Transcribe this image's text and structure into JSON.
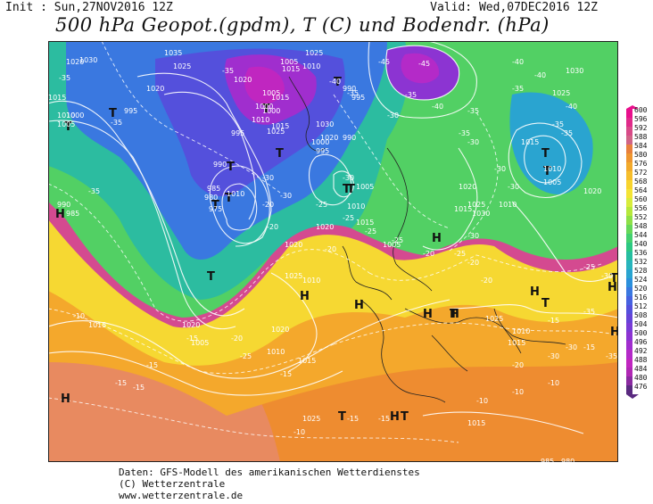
{
  "header": {
    "init": "Init : Sun,27NOV2016 12Z",
    "valid": "Valid: Wed,07DEC2016 12Z",
    "title": "500 hPa Geopot.(gpdm), T (C) und Bodendr. (hPa)"
  },
  "footer": {
    "line1": "Daten: GFS-Modell des amerikanischen Wetterdienstes",
    "line2": "(C) Wetterzentrale",
    "line3": "www.wetterzentrale.de"
  },
  "legend": {
    "levels": [
      "600",
      "596",
      "592",
      "588",
      "584",
      "580",
      "576",
      "572",
      "568",
      "564",
      "560",
      "556",
      "552",
      "548",
      "544",
      "540",
      "536",
      "532",
      "528",
      "524",
      "520",
      "516",
      "512",
      "508",
      "504",
      "500",
      "496",
      "492",
      "488",
      "484",
      "480",
      "476"
    ],
    "colors": [
      "#e8108c",
      "#e02a8a",
      "#d84a88",
      "#d06486",
      "#e8803c",
      "#ee9630",
      "#f2aa2c",
      "#f6be2c",
      "#f8d42e",
      "#f4e436",
      "#d8ec3c",
      "#b6e83c",
      "#8ee048",
      "#66d85a",
      "#44d070",
      "#2cc882",
      "#26bea0",
      "#28b4bc",
      "#2aa4d0",
      "#2c90dc",
      "#3a78e0",
      "#4662e0",
      "#5450dc",
      "#6644d8",
      "#7a3cd6",
      "#8c34d2",
      "#a02ece",
      "#b42ac8",
      "#c026c0",
      "#b028b4",
      "#8a2aa0",
      "#5a2a80"
    ]
  },
  "map": {
    "highs": [
      "H",
      "H",
      "H",
      "H",
      "H",
      "H",
      "H",
      "H",
      "H",
      "H",
      "H"
    ],
    "lows": [
      "T",
      "T",
      "T",
      "T",
      "T",
      "T",
      "T",
      "T",
      "T",
      "T",
      "T",
      "T",
      "T",
      "T",
      "T",
      "T",
      "T",
      "T"
    ],
    "pressure_labels": [
      "1035",
      "1030",
      "1025",
      "1020",
      "1015",
      "1010",
      "1005",
      "1000",
      "995",
      "990",
      "985",
      "980",
      "975",
      "1020",
      "1010",
      "1015",
      "1005",
      "1000",
      "1010",
      "1025",
      "1020",
      "1015",
      "1010",
      "1005",
      "1000",
      "995",
      "990",
      "985",
      "1030",
      "1025",
      "1020",
      "1015",
      "1010",
      "1005",
      "1010",
      "1015",
      "1020",
      "1025",
      "1030",
      "1015",
      "1020",
      "1025",
      "1010",
      "1005",
      "1015",
      "1025",
      "1030",
      "1020",
      "1000",
      "995",
      "990",
      "1005",
      "1010",
      "1015",
      "1020",
      "1025",
      "1010",
      "1015",
      "1020",
      "1005",
      "1010",
      "1015",
      "1020",
      "1025",
      "1015",
      "985",
      "980",
      "990",
      "995"
    ],
    "temperature_labels": [
      "-35",
      "-35",
      "-35",
      "-40",
      "-45",
      "-45",
      "-35",
      "-40",
      "-35",
      "-30",
      "-30",
      "-30",
      "-35",
      "-40",
      "-40",
      "-35",
      "-35",
      "-35",
      "-30",
      "-30",
      "-30",
      "-25",
      "-25",
      "-25",
      "-20",
      "-20",
      "-25",
      "-20",
      "-20",
      "-15",
      "-15",
      "-15",
      "-15",
      "-15",
      "-10",
      "-10",
      "-20",
      "-25",
      "-30",
      "-20",
      "-15",
      "-15",
      "-10",
      "-10",
      "-10",
      "-15",
      "-30",
      "-35",
      "-40",
      "-35",
      "-30",
      "-25",
      "-20",
      "-15",
      "-30",
      "-35",
      "-35",
      "-30",
      "-25",
      "-20"
    ]
  }
}
